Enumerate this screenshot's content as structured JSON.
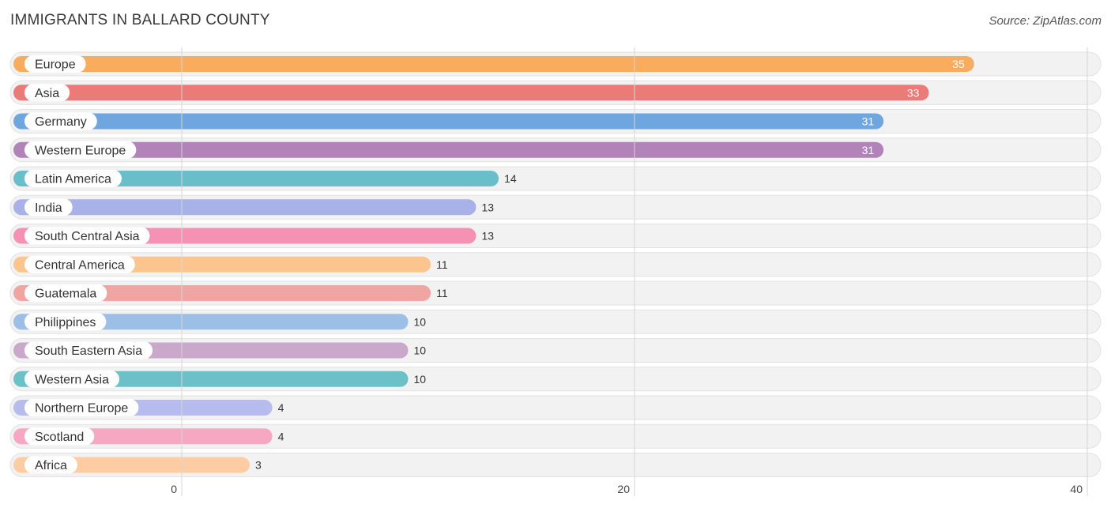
{
  "header": {
    "title": "IMMIGRANTS IN BALLARD COUNTY",
    "source": "Source: ZipAtlas.com"
  },
  "chart_data": {
    "type": "bar",
    "orientation": "horizontal",
    "categories": [
      "Europe",
      "Asia",
      "Germany",
      "Western Europe",
      "Latin America",
      "India",
      "South Central Asia",
      "Central America",
      "Guatemala",
      "Philippines",
      "South Eastern Asia",
      "Western Asia",
      "Northern Europe",
      "Scotland",
      "Africa"
    ],
    "values": [
      35,
      33,
      31,
      31,
      14,
      13,
      13,
      11,
      11,
      10,
      10,
      10,
      4,
      4,
      3
    ],
    "colors": [
      "#f9ab5e",
      "#ea7b78",
      "#6fa6df",
      "#b183b9",
      "#68bec9",
      "#a8b1e8",
      "#f592b4",
      "#fcc58e",
      "#efa5a2",
      "#9cbfe8",
      "#c9a8cc",
      "#6cc1c9",
      "#b6bdee",
      "#f6a7c2",
      "#fdcca3"
    ],
    "xlim": [
      0,
      40
    ],
    "xticks": [
      0,
      20,
      40
    ],
    "grid": true,
    "legend": "none"
  }
}
